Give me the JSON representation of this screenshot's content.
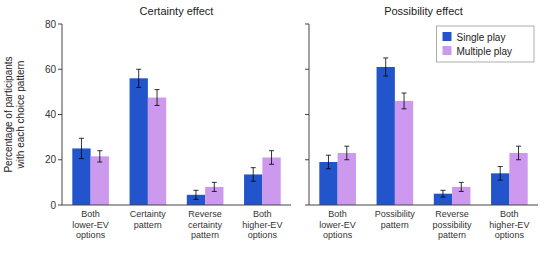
{
  "chart_data": [
    {
      "type": "bar",
      "title": "Certainty effect",
      "categories": [
        "Both\nlower-EV\noptions",
        "Certainty\npattern",
        "Reverse\ncertainty\npattern",
        "Both\nhigher-EV\noptions"
      ],
      "series": [
        {
          "color": "#2255cc",
          "values": [
            25,
            56,
            4.5,
            13.5
          ],
          "errors": [
            4.5,
            4,
            2,
            3
          ]
        },
        {
          "color": "#cc99ee",
          "values": [
            21.5,
            47.5,
            8,
            21
          ],
          "errors": [
            2.5,
            3.5,
            2,
            3
          ]
        }
      ],
      "y_label": "Percentage of participants\nwith each choice pattern",
      "ylim": [
        0,
        80
      ],
      "yticks": [
        0,
        20,
        40,
        60,
        80
      ]
    },
    {
      "type": "bar",
      "title": "Possibility effect",
      "categories": [
        "Both\nlower-EV\noptions",
        "Possibility\npattern",
        "Reverse\npossibility\npattern",
        "Both\nhigher-EV\noptions"
      ],
      "series": [
        {
          "name": "Single play",
          "color": "#2255cc",
          "values": [
            19,
            61,
            5,
            14
          ],
          "errors": [
            3,
            4,
            1.5,
            3
          ]
        },
        {
          "name": "Multiple play",
          "color": "#cc99ee",
          "values": [
            23,
            46,
            8,
            23
          ],
          "errors": [
            3,
            3.5,
            2,
            3
          ]
        }
      ],
      "ylim": [
        0,
        80
      ],
      "yticks": [
        0,
        20,
        40,
        60,
        80
      ],
      "tick_labels": "x",
      "legend": "upper right"
    }
  ]
}
